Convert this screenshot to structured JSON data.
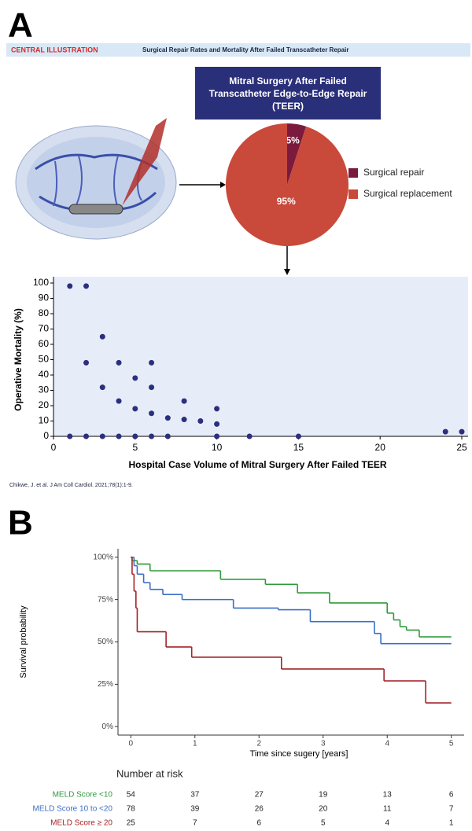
{
  "panel_labels": [
    "A",
    "B"
  ],
  "banner": {
    "tag": "CENTRAL ILLUSTRATION",
    "title": "Surgical Repair Rates and Mortality After Failed Transcatheter Repair"
  },
  "citation": "Chikwe, J. et al. J Am Coll Cardiol. 2021;78(1):1-9.",
  "risk_table": {
    "title": "Number at risk",
    "rows": [
      [
        54,
        37,
        27,
        19,
        13,
        6
      ],
      [
        78,
        39,
        26,
        20,
        11,
        7
      ],
      [
        25,
        7,
        6,
        5,
        4,
        1
      ]
    ]
  },
  "chart_data": [
    {
      "type": "pie",
      "title": "Mitral Surgery After Failed Transcatheter Edge-to-Edge Repair (TEER)",
      "categories": [
        "Surgical repair",
        "Surgical replacement"
      ],
      "values": [
        5,
        95
      ],
      "value_labels": [
        "5%",
        "95%"
      ],
      "colors": [
        "#7b1a3c",
        "#c9493a"
      ]
    },
    {
      "type": "scatter",
      "xlabel": "Hospital Case Volume of Mitral Surgery After Failed TEER",
      "ylabel": "Operative Mortality (%)",
      "x": [
        1,
        2,
        2,
        3,
        3,
        4,
        4,
        5,
        5,
        6,
        6,
        6,
        7,
        8,
        8,
        9,
        10,
        10,
        1,
        2,
        3,
        4,
        5,
        6,
        7,
        10,
        12,
        15,
        24,
        25
      ],
      "values": [
        98,
        98,
        48,
        65,
        32,
        48,
        23,
        38,
        18,
        48,
        32,
        15,
        12,
        23,
        11,
        10,
        18,
        8,
        0,
        0,
        0,
        0,
        0,
        0,
        0,
        0,
        0,
        0,
        3,
        3
      ],
      "color": "#2b2f7e",
      "xlim": [
        0,
        25
      ],
      "ylim": [
        0,
        100
      ],
      "xticks": [
        0,
        5,
        10,
        15,
        20,
        25
      ],
      "yticks": [
        0,
        10,
        20,
        30,
        40,
        50,
        60,
        70,
        80,
        90,
        100
      ]
    },
    {
      "type": "line",
      "xlabel": "Time since sugery [years]",
      "ylabel": "Survival probability",
      "xlim": [
        -0.2,
        5.2
      ],
      "ylim": [
        -5,
        105
      ],
      "xticks": [
        0,
        1,
        2,
        3,
        4,
        5
      ],
      "yticks": [
        {
          "value": 0,
          "label": "0%"
        },
        {
          "value": 25,
          "label": "25%"
        },
        {
          "value": 50,
          "label": "50%"
        },
        {
          "value": 75,
          "label": "75%"
        },
        {
          "value": 100,
          "label": "100%"
        }
      ],
      "series": [
        {
          "name": "MELD Score <10",
          "color": "#2e9a3a",
          "x": [
            0,
            0.02,
            0.1,
            0.3,
            1.4,
            2.1,
            2.6,
            3.1,
            4.0,
            4.1,
            4.2,
            4.3,
            4.5,
            5
          ],
          "values": [
            100,
            98,
            96,
            92,
            87,
            84,
            79,
            73,
            67,
            63,
            59,
            57,
            53,
            53
          ]
        },
        {
          "name": "MELD Score 10 to <20",
          "color": "#3a6fc4",
          "x": [
            0,
            0.05,
            0.1,
            0.2,
            0.3,
            0.5,
            0.8,
            1.6,
            2.3,
            2.8,
            3.8,
            3.9,
            5
          ],
          "values": [
            100,
            95,
            90,
            85,
            81,
            78,
            75,
            70,
            69,
            62,
            55,
            49,
            49
          ]
        },
        {
          "name": "MELD Score ≥ 20",
          "color": "#a3242a",
          "x": [
            0,
            0.02,
            0.05,
            0.08,
            0.1,
            0.55,
            0.95,
            2.35,
            3.95,
            4.6,
            5
          ],
          "values": [
            100,
            90,
            80,
            70,
            56,
            47,
            41,
            34,
            27,
            14,
            14
          ]
        }
      ]
    }
  ]
}
